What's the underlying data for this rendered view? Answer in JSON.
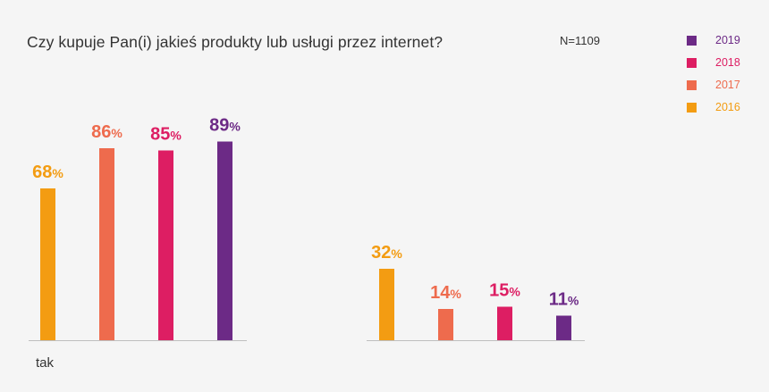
{
  "chart_data": {
    "type": "bar",
    "title": "Czy kupuje Pan(i) jakieś produkty lub usługi przez internet?",
    "note": "N=1109",
    "categories": [
      "tak",
      ""
    ],
    "series": [
      {
        "name": "2016",
        "color": "#f39c12",
        "values": [
          68,
          32
        ]
      },
      {
        "name": "2017",
        "color": "#ee6b4d",
        "values": [
          86,
          14
        ]
      },
      {
        "name": "2018",
        "color": "#dd1e63",
        "values": [
          85,
          15
        ]
      },
      {
        "name": "2019",
        "color": "#6c2a86",
        "values": [
          89,
          11
        ]
      }
    ],
    "value_suffix": "%",
    "ylim": [
      0,
      100
    ],
    "grid": false,
    "legend_position": "top-right",
    "legend_order": [
      "2019",
      "2018",
      "2017",
      "2016"
    ]
  }
}
